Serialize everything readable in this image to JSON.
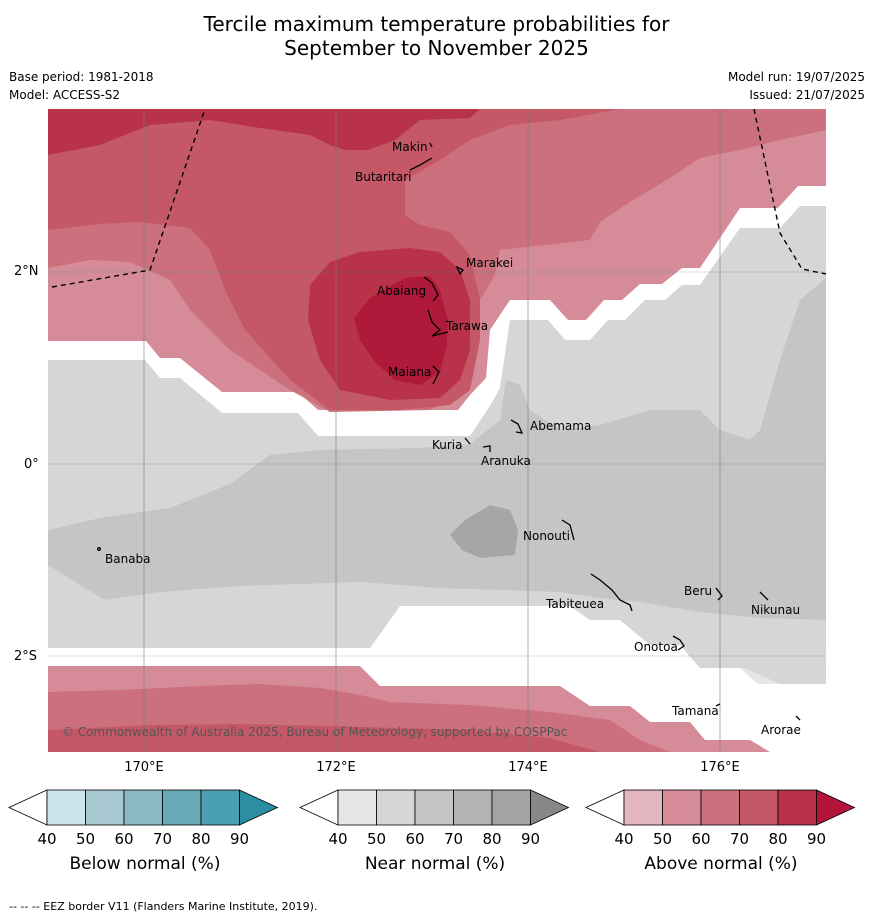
{
  "title_line1": "Tercile maximum temperature probabilities for",
  "title_line2": "September to November 2025",
  "base_period": "Base period: 1981-2018",
  "model": "Model: ACCESS-S2",
  "model_run": "Model run: 19/07/2025",
  "issued": "Issued: 21/07/2025",
  "copyright": "© Commonwealth of Australia 2025, Bureau of Meteorology, supported by COSPPac",
  "lon_labels": [
    "170°E",
    "172°E",
    "174°E",
    "176°E"
  ],
  "lat_labels": [
    "2°N",
    "0°",
    "2°S"
  ],
  "places": {
    "makin": "Makin",
    "butaritari": "Butaritari",
    "marakei": "Marakei",
    "abaiang": "Abaiang",
    "tarawa": "Tarawa",
    "maiana": "Maiana",
    "abemama": "Abemama",
    "kuria": "Kuria",
    "aranuka": "Aranuka",
    "nonouti": "Nonouti",
    "banaba": "Banaba",
    "beru": "Beru",
    "nikunau": "Nikunau",
    "tabiteuea": "Tabiteuea",
    "onotoa": "Onotoa",
    "tamana": "Tamana",
    "arorae": "Arorae"
  },
  "colorbars": [
    {
      "title": "Below normal (%)",
      "ticks": [
        "40",
        "50",
        "60",
        "70",
        "80",
        "90"
      ],
      "colors": [
        "#ffffff",
        "#cde3ea",
        "#a8c9d2",
        "#8bb8c5",
        "#6aa9b8",
        "#4aa0b0",
        "#2c8da3"
      ]
    },
    {
      "title": "Near normal (%)",
      "ticks": [
        "40",
        "50",
        "60",
        "70",
        "80",
        "90"
      ],
      "colors": [
        "#ffffff",
        "#e6e6e6",
        "#d6d6d6",
        "#c5c5c5",
        "#b4b4b4",
        "#a3a3a3",
        "#888888"
      ]
    },
    {
      "title": "Above normal (%)",
      "ticks": [
        "40",
        "50",
        "60",
        "70",
        "80",
        "90"
      ],
      "colors": [
        "#ffffff",
        "#e2b6bf",
        "#d68c98",
        "#cc707e",
        "#c45866",
        "#b8334a",
        "#b5143a"
      ]
    }
  ],
  "footer": "--  --  -- EEZ border V11 (Flanders Marine Institute, 2019)."
}
